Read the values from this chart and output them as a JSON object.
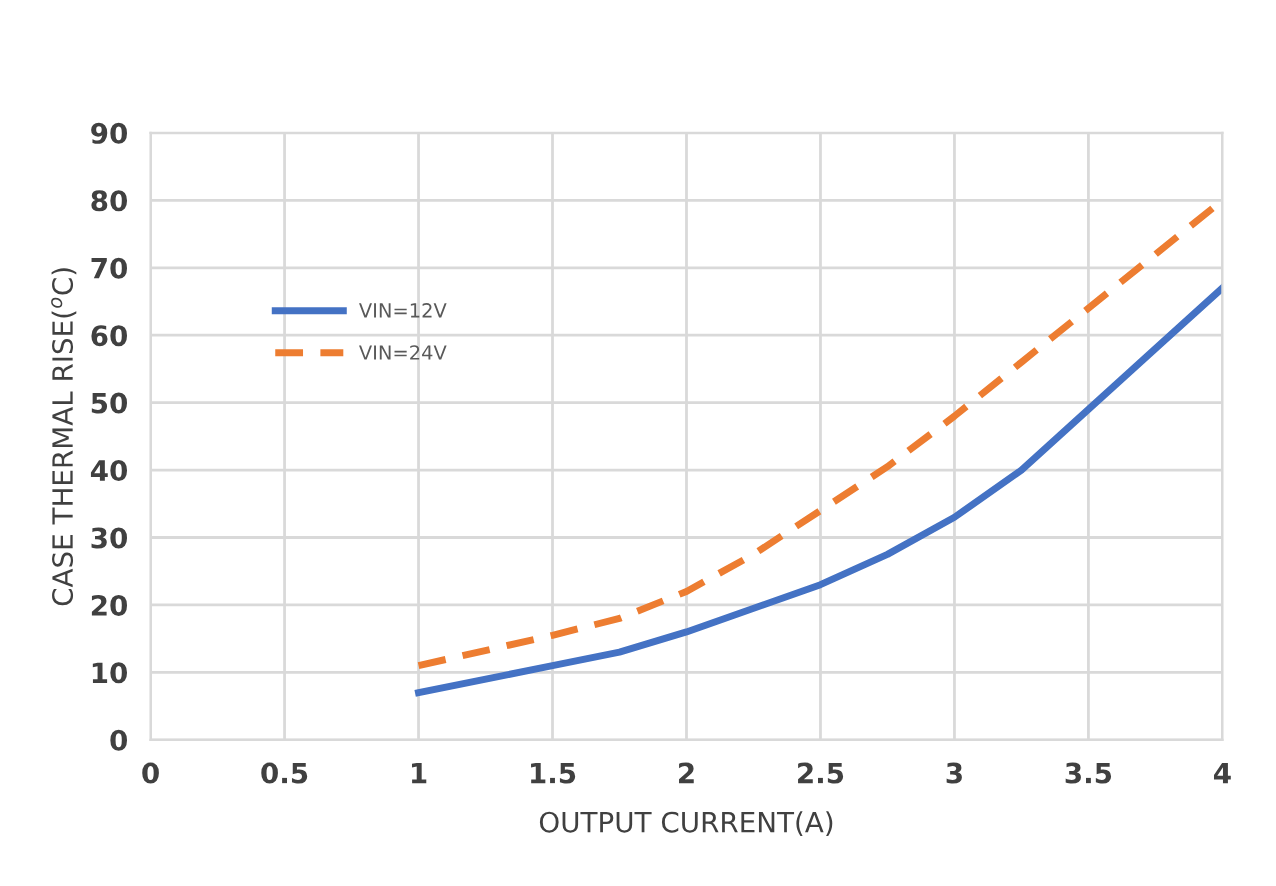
{
  "chart_data": {
    "type": "line",
    "xlabel": "OUTPUT CURRENT(A)",
    "ylabel": "CASE THERMAL RISE($^{o}$C)",
    "xlim": [
      0,
      4
    ],
    "xticks": [
      0,
      0.5,
      1,
      1.5,
      2,
      2.5,
      3,
      3.5,
      4
    ],
    "ylim": [
      0,
      90
    ],
    "yticks": [
      0,
      10,
      20,
      30,
      40,
      50,
      60,
      70,
      80,
      90
    ],
    "grid": true,
    "legend": "left",
    "marker": "none",
    "series": [
      {
        "name": "VIN=12V",
        "color": "#4472c4",
        "line_style": "solid",
        "x": [
          1,
          1.5,
          1.75,
          2,
          2.5,
          2.75,
          3,
          3.25,
          3.5,
          3.75,
          4
        ],
        "values": [
          7,
          11,
          13,
          16,
          23,
          27.5,
          33,
          40,
          49,
          58,
          67
        ]
      },
      {
        "name": "VIN=24V",
        "color": "#ed7d31",
        "line_style": "dashed",
        "x": [
          1,
          1.5,
          1.75,
          2,
          2.25,
          2.5,
          2.75,
          3,
          3.25,
          3.5,
          3.75,
          4
        ],
        "values": [
          11,
          15.5,
          18,
          22,
          27.5,
          34,
          40.5,
          48,
          56,
          64,
          72,
          80
        ]
      }
    ]
  }
}
